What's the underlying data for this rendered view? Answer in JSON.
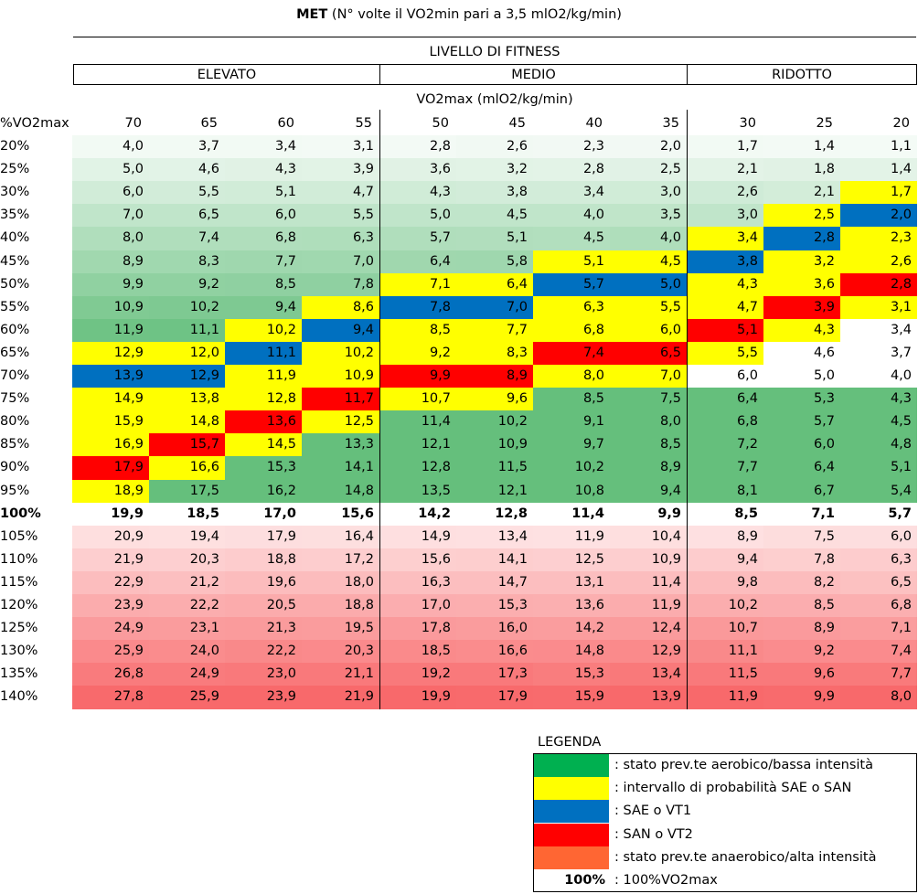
{
  "title": {
    "bold": "MET",
    "rest": " (N° volte il VO2min pari a 3,5 mlO2/kg/min)"
  },
  "fitness_header": "LIVELLO DI FITNESS",
  "groups": [
    {
      "label": "ELEVATO"
    },
    {
      "label": "MEDIO"
    },
    {
      "label": "RIDOTTO"
    }
  ],
  "vo2_header": "VO2max (mlO2/kg/min)",
  "row_header": "%VO2max",
  "columns": [
    "70",
    "65",
    "60",
    "55",
    "50",
    "45",
    "40",
    "35",
    "30",
    "25",
    "20"
  ],
  "colors": {
    "green_dark": "#63BE7B",
    "white": "#FFFFFF",
    "red_dark": "#F8696B",
    "yellow": "#FFFF00",
    "blue": "#0070C0",
    "red": "#FF0000",
    "legend_green": "#00B050",
    "legend_orange": "#FF6633"
  },
  "rows": [
    {
      "label": "20%",
      "values": [
        "4,0",
        "3,7",
        "3,4",
        "3,1",
        "2,8",
        "2,6",
        "2,3",
        "2,0",
        "1,7",
        "1,4",
        "1,1"
      ],
      "marks": [
        "",
        "",
        "",
        "",
        "",
        "",
        "",
        "",
        "",
        "",
        ""
      ]
    },
    {
      "label": "25%",
      "values": [
        "5,0",
        "4,6",
        "4,3",
        "3,9",
        "3,6",
        "3,2",
        "2,8",
        "2,5",
        "2,1",
        "1,8",
        "1,4"
      ],
      "marks": [
        "",
        "",
        "",
        "",
        "",
        "",
        "",
        "",
        "",
        "",
        ""
      ]
    },
    {
      "label": "30%",
      "values": [
        "6,0",
        "5,5",
        "5,1",
        "4,7",
        "4,3",
        "3,8",
        "3,4",
        "3,0",
        "2,6",
        "2,1",
        "1,7"
      ],
      "marks": [
        "",
        "",
        "",
        "",
        "",
        "",
        "",
        "",
        "",
        "",
        "Y"
      ]
    },
    {
      "label": "35%",
      "values": [
        "7,0",
        "6,5",
        "6,0",
        "5,5",
        "5,0",
        "4,5",
        "4,0",
        "3,5",
        "3,0",
        "2,5",
        "2,0"
      ],
      "marks": [
        "",
        "",
        "",
        "",
        "",
        "",
        "",
        "",
        "",
        "Y",
        "B"
      ]
    },
    {
      "label": "40%",
      "values": [
        "8,0",
        "7,4",
        "6,8",
        "6,3",
        "5,7",
        "5,1",
        "4,5",
        "4,0",
        "3,4",
        "2,8",
        "2,3"
      ],
      "marks": [
        "",
        "",
        "",
        "",
        "",
        "",
        "",
        "",
        "Y",
        "B",
        "Y"
      ]
    },
    {
      "label": "45%",
      "values": [
        "8,9",
        "8,3",
        "7,7",
        "7,0",
        "6,4",
        "5,8",
        "5,1",
        "4,5",
        "3,8",
        "3,2",
        "2,6"
      ],
      "marks": [
        "",
        "",
        "",
        "",
        "",
        "",
        "Y",
        "Y",
        "B",
        "Y",
        "Y"
      ]
    },
    {
      "label": "50%",
      "values": [
        "9,9",
        "9,2",
        "8,5",
        "7,8",
        "7,1",
        "6,4",
        "5,7",
        "5,0",
        "4,3",
        "3,6",
        "2,8"
      ],
      "marks": [
        "",
        "",
        "",
        "",
        "Y",
        "Y",
        "B",
        "B",
        "Y",
        "Y",
        "R"
      ]
    },
    {
      "label": "55%",
      "values": [
        "10,9",
        "10,2",
        "9,4",
        "8,6",
        "7,8",
        "7,0",
        "6,3",
        "5,5",
        "4,7",
        "3,9",
        "3,1"
      ],
      "marks": [
        "",
        "",
        "",
        "Y",
        "B",
        "B",
        "Y",
        "Y",
        "Y",
        "R",
        "Y"
      ]
    },
    {
      "label": "60%",
      "values": [
        "11,9",
        "11,1",
        "10,2",
        "9,4",
        "8,5",
        "7,7",
        "6,8",
        "6,0",
        "5,1",
        "4,3",
        "3,4"
      ],
      "marks": [
        "",
        "",
        "Y",
        "B",
        "Y",
        "Y",
        "Y",
        "Y",
        "R",
        "Y",
        "W"
      ]
    },
    {
      "label": "65%",
      "values": [
        "12,9",
        "12,0",
        "11,1",
        "10,2",
        "9,2",
        "8,3",
        "7,4",
        "6,5",
        "5,5",
        "4,6",
        "3,7"
      ],
      "marks": [
        "Y",
        "Y",
        "B",
        "Y",
        "Y",
        "Y",
        "R",
        "R",
        "Y",
        "W",
        "W"
      ]
    },
    {
      "label": "70%",
      "values": [
        "13,9",
        "12,9",
        "11,9",
        "10,9",
        "9,9",
        "8,9",
        "8,0",
        "7,0",
        "6,0",
        "5,0",
        "4,0"
      ],
      "marks": [
        "B",
        "B",
        "Y",
        "Y",
        "R",
        "R",
        "Y",
        "Y",
        "W",
        "W",
        "W"
      ]
    },
    {
      "label": "75%",
      "values": [
        "14,9",
        "13,8",
        "12,8",
        "11,7",
        "10,7",
        "9,6",
        "8,5",
        "7,5",
        "6,4",
        "5,3",
        "4,3"
      ],
      "marks": [
        "Y",
        "Y",
        "Y",
        "R",
        "Y",
        "Y",
        "",
        "",
        "",
        "",
        ""
      ]
    },
    {
      "label": "80%",
      "values": [
        "15,9",
        "14,8",
        "13,6",
        "12,5",
        "11,4",
        "10,2",
        "9,1",
        "8,0",
        "6,8",
        "5,7",
        "4,5"
      ],
      "marks": [
        "Y",
        "Y",
        "R",
        "Y",
        "",
        "",
        "",
        "",
        "",
        "",
        ""
      ]
    },
    {
      "label": "85%",
      "values": [
        "16,9",
        "15,7",
        "14,5",
        "13,3",
        "12,1",
        "10,9",
        "9,7",
        "8,5",
        "7,2",
        "6,0",
        "4,8"
      ],
      "marks": [
        "Y",
        "R",
        "Y",
        "",
        "",
        "",
        "",
        "",
        "",
        "",
        ""
      ]
    },
    {
      "label": "90%",
      "values": [
        "17,9",
        "16,6",
        "15,3",
        "14,1",
        "12,8",
        "11,5",
        "10,2",
        "8,9",
        "7,7",
        "6,4",
        "5,1"
      ],
      "marks": [
        "R",
        "Y",
        "",
        "",
        "",
        "",
        "",
        "",
        "",
        "",
        ""
      ]
    },
    {
      "label": "95%",
      "values": [
        "18,9",
        "17,5",
        "16,2",
        "14,8",
        "13,5",
        "12,1",
        "10,8",
        "9,4",
        "8,1",
        "6,7",
        "5,4"
      ],
      "marks": [
        "Y",
        "",
        "",
        "",
        "",
        "",
        "",
        "",
        "",
        "",
        ""
      ]
    },
    {
      "label": "100%",
      "values": [
        "19,9",
        "18,5",
        "17,0",
        "15,6",
        "14,2",
        "12,8",
        "11,4",
        "9,9",
        "8,5",
        "7,1",
        "5,7"
      ],
      "marks": [
        "W",
        "W",
        "W",
        "W",
        "W",
        "W",
        "W",
        "W",
        "W",
        "W",
        "W"
      ],
      "bold": true
    },
    {
      "label": "105%",
      "values": [
        "20,9",
        "19,4",
        "17,9",
        "16,4",
        "14,9",
        "13,4",
        "11,9",
        "10,4",
        "8,9",
        "7,5",
        "6,0"
      ],
      "marks": [
        "",
        "",
        "",
        "",
        "",
        "",
        "",
        "",
        "",
        "",
        ""
      ]
    },
    {
      "label": "110%",
      "values": [
        "21,9",
        "20,3",
        "18,8",
        "17,2",
        "15,6",
        "14,1",
        "12,5",
        "10,9",
        "9,4",
        "7,8",
        "6,3"
      ],
      "marks": [
        "",
        "",
        "",
        "",
        "",
        "",
        "",
        "",
        "",
        "",
        ""
      ]
    },
    {
      "label": "115%",
      "values": [
        "22,9",
        "21,2",
        "19,6",
        "18,0",
        "16,3",
        "14,7",
        "13,1",
        "11,4",
        "9,8",
        "8,2",
        "6,5"
      ],
      "marks": [
        "",
        "",
        "",
        "",
        "",
        "",
        "",
        "",
        "",
        "",
        ""
      ]
    },
    {
      "label": "120%",
      "values": [
        "23,9",
        "22,2",
        "20,5",
        "18,8",
        "17,0",
        "15,3",
        "13,6",
        "11,9",
        "10,2",
        "8,5",
        "6,8"
      ],
      "marks": [
        "",
        "",
        "",
        "",
        "",
        "",
        "",
        "",
        "",
        "",
        ""
      ]
    },
    {
      "label": "125%",
      "values": [
        "24,9",
        "23,1",
        "21,3",
        "19,5",
        "17,8",
        "16,0",
        "14,2",
        "12,4",
        "10,7",
        "8,9",
        "7,1"
      ],
      "marks": [
        "",
        "",
        "",
        "",
        "",
        "",
        "",
        "",
        "",
        "",
        ""
      ]
    },
    {
      "label": "130%",
      "values": [
        "25,9",
        "24,0",
        "22,2",
        "20,3",
        "18,5",
        "16,6",
        "14,8",
        "12,9",
        "11,1",
        "9,2",
        "7,4"
      ],
      "marks": [
        "",
        "",
        "",
        "",
        "",
        "",
        "",
        "",
        "",
        "",
        ""
      ]
    },
    {
      "label": "135%",
      "values": [
        "26,8",
        "24,9",
        "23,0",
        "21,1",
        "19,2",
        "17,3",
        "15,3",
        "13,4",
        "11,5",
        "9,6",
        "7,7"
      ],
      "marks": [
        "",
        "",
        "",
        "",
        "",
        "",
        "",
        "",
        "",
        "",
        ""
      ]
    },
    {
      "label": "140%",
      "values": [
        "27,8",
        "25,9",
        "23,9",
        "21,9",
        "19,9",
        "17,9",
        "15,9",
        "13,9",
        "11,9",
        "9,9",
        "8,0"
      ],
      "marks": [
        "",
        "",
        "",
        "",
        "",
        "",
        "",
        "",
        "",
        "",
        ""
      ]
    }
  ],
  "legend": {
    "title": "LEGENDA",
    "items": [
      {
        "color": "#00B050",
        "text": ": stato prev.te aerobico/bassa intensità"
      },
      {
        "color": "#FFFF00",
        "text": ": intervallo di probabilità SAE o SAN"
      },
      {
        "color": "#0070C0",
        "text": ": SAE o VT1"
      },
      {
        "color": "#FF0000",
        "text": ": SAN o VT2"
      },
      {
        "color": "#FF6633",
        "text": ": stato prev.te anaerobico/alta intensità"
      }
    ],
    "sample_label": "100%",
    "sample_text": ": 100%VO2max"
  }
}
